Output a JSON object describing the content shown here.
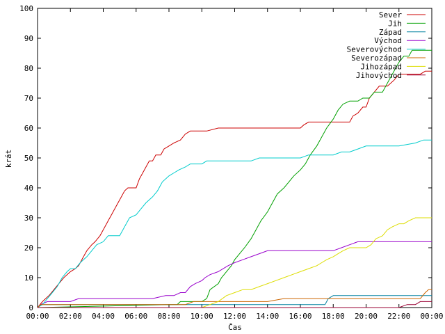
{
  "chart_data": {
    "type": "line",
    "title": "",
    "xlabel": "Čas",
    "ylabel": "krát",
    "xlim": [
      0,
      24
    ],
    "ylim": [
      0,
      100
    ],
    "x_ticks": [
      {
        "value": 0,
        "label": "00:00"
      },
      {
        "value": 2,
        "label": "02:00"
      },
      {
        "value": 4,
        "label": "04:00"
      },
      {
        "value": 6,
        "label": "06:00"
      },
      {
        "value": 8,
        "label": "08:00"
      },
      {
        "value": 10,
        "label": "10:00"
      },
      {
        "value": 12,
        "label": "12:00"
      },
      {
        "value": 14,
        "label": "14:00"
      },
      {
        "value": 16,
        "label": "16:00"
      },
      {
        "value": 18,
        "label": "18:00"
      },
      {
        "value": 20,
        "label": "20:00"
      },
      {
        "value": 22,
        "label": "22:00"
      },
      {
        "value": 24,
        "label": "00:00"
      }
    ],
    "y_ticks": [
      0,
      10,
      20,
      30,
      40,
      50,
      60,
      70,
      80,
      90,
      100
    ],
    "grid": false,
    "legend_position": "top-right",
    "series": [
      {
        "name": "Sever",
        "color": "#cc0000",
        "points": [
          [
            0,
            0
          ],
          [
            0.3,
            2
          ],
          [
            0.7,
            4
          ],
          [
            1.0,
            6
          ],
          [
            1.3,
            8
          ],
          [
            1.6,
            10
          ],
          [
            2.0,
            12
          ],
          [
            2.3,
            13
          ],
          [
            2.5,
            14
          ],
          [
            2.8,
            17
          ],
          [
            3.0,
            19
          ],
          [
            3.3,
            21
          ],
          [
            3.5,
            22
          ],
          [
            3.8,
            24
          ],
          [
            4.0,
            26
          ],
          [
            4.3,
            29
          ],
          [
            4.5,
            31
          ],
          [
            4.8,
            34
          ],
          [
            5.0,
            36
          ],
          [
            5.3,
            39
          ],
          [
            5.5,
            40
          ],
          [
            6.0,
            40
          ],
          [
            6.2,
            43
          ],
          [
            6.5,
            46
          ],
          [
            6.8,
            49
          ],
          [
            7.0,
            49
          ],
          [
            7.2,
            51
          ],
          [
            7.5,
            51
          ],
          [
            7.7,
            53
          ],
          [
            8.0,
            54
          ],
          [
            8.3,
            55
          ],
          [
            8.7,
            56
          ],
          [
            9.0,
            58
          ],
          [
            9.3,
            59
          ],
          [
            10.0,
            59
          ],
          [
            10.3,
            59
          ],
          [
            11.0,
            60
          ],
          [
            12.0,
            60
          ],
          [
            14.0,
            60
          ],
          [
            16.0,
            60
          ],
          [
            16.2,
            61
          ],
          [
            16.5,
            62
          ],
          [
            18.0,
            62
          ],
          [
            19.0,
            62
          ],
          [
            19.2,
            64
          ],
          [
            19.5,
            65
          ],
          [
            19.8,
            67
          ],
          [
            20.0,
            67
          ],
          [
            20.2,
            70
          ],
          [
            20.5,
            72
          ],
          [
            20.8,
            74
          ],
          [
            21.0,
            74
          ],
          [
            21.3,
            74
          ],
          [
            21.7,
            76
          ],
          [
            22.0,
            78
          ],
          [
            22.5,
            78
          ],
          [
            23.0,
            78
          ],
          [
            23.3,
            78
          ],
          [
            23.6,
            79
          ],
          [
            24,
            79
          ]
        ]
      },
      {
        "name": "Jih",
        "color": "#00a000",
        "points": [
          [
            0,
            0
          ],
          [
            8.0,
            1
          ],
          [
            8.5,
            1
          ],
          [
            8.7,
            2
          ],
          [
            9.0,
            2
          ],
          [
            10.0,
            2
          ],
          [
            10.3,
            3
          ],
          [
            10.5,
            6
          ],
          [
            11.0,
            8
          ],
          [
            11.2,
            10
          ],
          [
            11.5,
            12
          ],
          [
            11.8,
            14
          ],
          [
            12.0,
            16
          ],
          [
            12.3,
            18
          ],
          [
            12.6,
            20
          ],
          [
            13.0,
            23
          ],
          [
            13.3,
            26
          ],
          [
            13.6,
            29
          ],
          [
            14.0,
            32
          ],
          [
            14.3,
            35
          ],
          [
            14.6,
            38
          ],
          [
            15.0,
            40
          ],
          [
            15.3,
            42
          ],
          [
            15.6,
            44
          ],
          [
            16.0,
            46
          ],
          [
            16.3,
            48
          ],
          [
            16.6,
            51
          ],
          [
            17.0,
            54
          ],
          [
            17.3,
            57
          ],
          [
            17.6,
            60
          ],
          [
            18.0,
            63
          ],
          [
            18.3,
            66
          ],
          [
            18.6,
            68
          ],
          [
            19.0,
            69
          ],
          [
            19.5,
            69
          ],
          [
            19.8,
            70
          ],
          [
            20.2,
            70
          ],
          [
            20.5,
            72
          ],
          [
            21.0,
            72
          ],
          [
            21.2,
            74
          ],
          [
            21.5,
            77
          ],
          [
            21.8,
            80
          ],
          [
            22.0,
            82
          ],
          [
            22.3,
            84
          ],
          [
            22.6,
            84
          ],
          [
            22.8,
            86
          ],
          [
            23.0,
            86
          ],
          [
            24,
            86
          ]
        ]
      },
      {
        "name": "Západ",
        "color": "#0080a0",
        "points": [
          [
            0,
            0
          ],
          [
            0.2,
            1
          ],
          [
            2.7,
            1
          ],
          [
            2.8,
            1
          ],
          [
            10.0,
            1
          ],
          [
            17.0,
            1
          ],
          [
            17.5,
            1
          ],
          [
            17.7,
            3
          ],
          [
            18.0,
            4
          ],
          [
            20.0,
            4
          ],
          [
            22.0,
            4
          ],
          [
            24,
            4
          ]
        ]
      },
      {
        "name": "Východ",
        "color": "#9900cc",
        "points": [
          [
            0,
            0
          ],
          [
            0.2,
            1
          ],
          [
            0.6,
            2
          ],
          [
            2.0,
            2
          ],
          [
            2.5,
            3
          ],
          [
            7.0,
            3
          ],
          [
            7.8,
            4
          ],
          [
            8.3,
            4
          ],
          [
            8.7,
            5
          ],
          [
            9.0,
            5
          ],
          [
            9.3,
            7
          ],
          [
            9.6,
            8
          ],
          [
            10.0,
            9
          ],
          [
            10.2,
            10
          ],
          [
            10.5,
            11
          ],
          [
            11.0,
            12
          ],
          [
            11.3,
            13
          ],
          [
            11.6,
            14
          ],
          [
            12.0,
            15
          ],
          [
            12.5,
            16
          ],
          [
            13.0,
            17
          ],
          [
            13.5,
            18
          ],
          [
            14.0,
            19
          ],
          [
            16.0,
            19
          ],
          [
            18.0,
            19
          ],
          [
            18.5,
            20
          ],
          [
            19.0,
            21
          ],
          [
            19.5,
            22
          ],
          [
            20.0,
            22
          ],
          [
            22.0,
            22
          ],
          [
            24,
            22
          ]
        ]
      },
      {
        "name": "Severovýchod",
        "color": "#00cccc",
        "points": [
          [
            0,
            0
          ],
          [
            0.3,
            1
          ],
          [
            0.6,
            3
          ],
          [
            0.9,
            5
          ],
          [
            1.2,
            7
          ],
          [
            1.5,
            10
          ],
          [
            1.8,
            12
          ],
          [
            2.0,
            13
          ],
          [
            2.3,
            13
          ],
          [
            2.6,
            15
          ],
          [
            3.0,
            17
          ],
          [
            3.3,
            19
          ],
          [
            3.6,
            21
          ],
          [
            4.0,
            22
          ],
          [
            4.3,
            24
          ],
          [
            4.8,
            24
          ],
          [
            5.0,
            24
          ],
          [
            5.3,
            27
          ],
          [
            5.6,
            30
          ],
          [
            6.0,
            31
          ],
          [
            6.3,
            33
          ],
          [
            6.6,
            35
          ],
          [
            7.0,
            37
          ],
          [
            7.3,
            39
          ],
          [
            7.6,
            42
          ],
          [
            8.0,
            44
          ],
          [
            8.3,
            45
          ],
          [
            8.6,
            46
          ],
          [
            9.0,
            47
          ],
          [
            9.3,
            48
          ],
          [
            9.6,
            48
          ],
          [
            10.0,
            48
          ],
          [
            10.3,
            49
          ],
          [
            11.0,
            49
          ],
          [
            12.0,
            49
          ],
          [
            13.0,
            49
          ],
          [
            13.5,
            50
          ],
          [
            14.0,
            50
          ],
          [
            15.0,
            50
          ],
          [
            16.0,
            50
          ],
          [
            16.5,
            51
          ],
          [
            17.0,
            51
          ],
          [
            18.0,
            51
          ],
          [
            18.5,
            52
          ],
          [
            19.0,
            52
          ],
          [
            19.5,
            53
          ],
          [
            20.0,
            54
          ],
          [
            21.0,
            54
          ],
          [
            22.0,
            54
          ],
          [
            23.0,
            55
          ],
          [
            23.5,
            56
          ],
          [
            24,
            56
          ]
        ]
      },
      {
        "name": "Severozápad",
        "color": "#cc6600",
        "points": [
          [
            0,
            0
          ],
          [
            0.2,
            1
          ],
          [
            3.0,
            1
          ],
          [
            5.0,
            1
          ],
          [
            9.0,
            1
          ],
          [
            9.5,
            2
          ],
          [
            10.0,
            2
          ],
          [
            12.0,
            2
          ],
          [
            14.0,
            2
          ],
          [
            15.0,
            3
          ],
          [
            16.0,
            3
          ],
          [
            18.0,
            3
          ],
          [
            20.0,
            3
          ],
          [
            22.0,
            3
          ],
          [
            23.0,
            3
          ],
          [
            23.3,
            3
          ],
          [
            23.6,
            5
          ],
          [
            23.8,
            6
          ],
          [
            24,
            6
          ]
        ]
      },
      {
        "name": "Jihozápad",
        "color": "#dddd00",
        "points": [
          [
            0,
            0
          ],
          [
            10.0,
            0
          ],
          [
            10.5,
            1
          ],
          [
            11.0,
            2
          ],
          [
            11.5,
            4
          ],
          [
            12.0,
            5
          ],
          [
            12.5,
            6
          ],
          [
            13.0,
            6
          ],
          [
            13.5,
            7
          ],
          [
            14.0,
            8
          ],
          [
            14.5,
            9
          ],
          [
            15.0,
            10
          ],
          [
            15.5,
            11
          ],
          [
            16.0,
            12
          ],
          [
            16.5,
            13
          ],
          [
            17.0,
            14
          ],
          [
            17.3,
            15
          ],
          [
            17.6,
            16
          ],
          [
            18.0,
            17
          ],
          [
            18.3,
            18
          ],
          [
            18.6,
            19
          ],
          [
            19.0,
            20
          ],
          [
            20.0,
            20
          ],
          [
            20.3,
            21
          ],
          [
            20.6,
            23
          ],
          [
            21.0,
            24
          ],
          [
            21.3,
            26
          ],
          [
            21.6,
            27
          ],
          [
            22.0,
            28
          ],
          [
            22.3,
            28
          ],
          [
            22.6,
            29
          ],
          [
            23.0,
            30
          ],
          [
            24,
            30
          ]
        ]
      },
      {
        "name": "Jihovýchod",
        "color": "#990033",
        "points": [
          [
            0,
            0
          ],
          [
            4.0,
            0
          ],
          [
            8.0,
            0
          ],
          [
            12.0,
            0
          ],
          [
            16.0,
            0
          ],
          [
            20.0,
            0
          ],
          [
            22.0,
            0
          ],
          [
            22.5,
            1
          ],
          [
            23.0,
            1
          ],
          [
            23.3,
            2
          ],
          [
            24,
            2
          ]
        ]
      }
    ]
  }
}
